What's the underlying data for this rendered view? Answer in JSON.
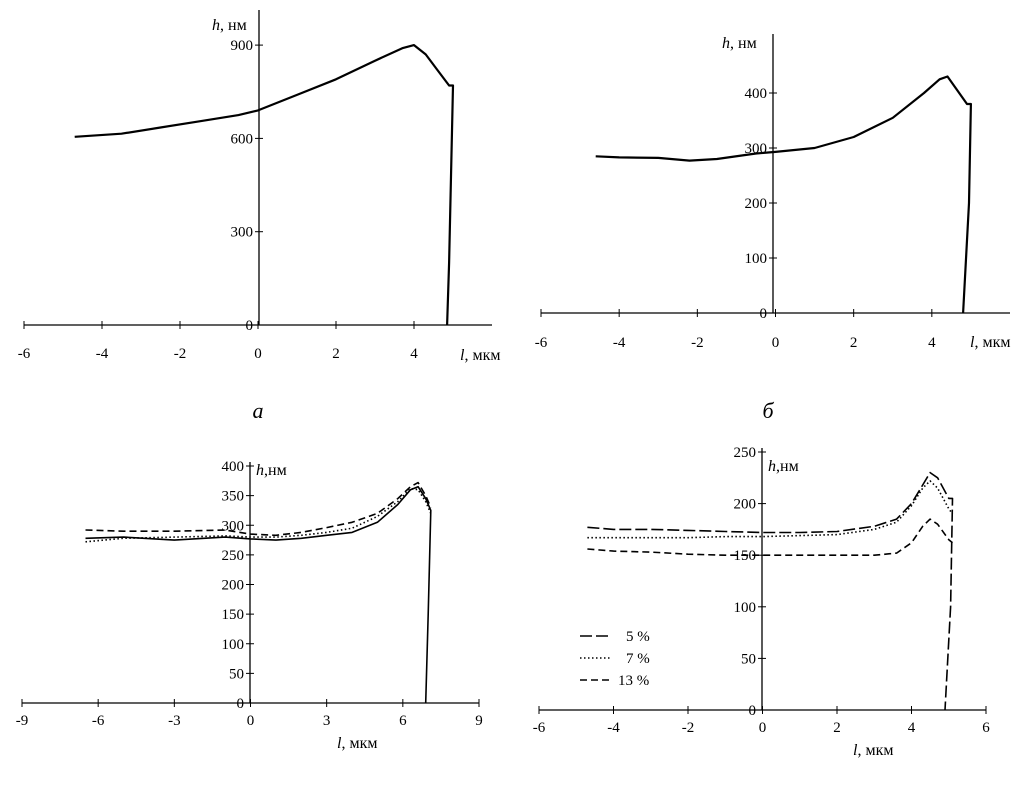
{
  "panels": [
    "а",
    "б"
  ],
  "chart_data": [
    {
      "type": "line",
      "panel_label": "а",
      "xlabel_var": "l",
      "xlabel_unit": ", мкм",
      "ylabel_var": "h",
      "ylabel_unit": ", нм",
      "xlim": [
        -6,
        6
      ],
      "ylim": [
        0,
        1000
      ],
      "xticks": [
        -6,
        -4,
        -2,
        0,
        2,
        4
      ],
      "yticks": [
        0,
        300,
        600,
        900
      ],
      "series": [
        {
          "x": [
            -4.7,
            -3.5,
            -2.5,
            -1.5,
            -0.5,
            0,
            1,
            2,
            3,
            3.7,
            4.0,
            4.3,
            4.6,
            4.9,
            5.0,
            4.9,
            4.85
          ],
          "y": [
            605,
            615,
            635,
            655,
            675,
            690,
            740,
            790,
            850,
            890,
            900,
            870,
            820,
            770,
            770,
            200,
            0
          ]
        }
      ]
    },
    {
      "type": "line",
      "panel_label": "б",
      "xlabel_var": "l",
      "xlabel_unit": ", мкм",
      "ylabel_var": "h",
      "ylabel_unit": ", нм",
      "xlim": [
        -6,
        6
      ],
      "ylim": [
        0,
        500
      ],
      "xticks": [
        -6,
        -4,
        -2,
        0,
        2,
        4
      ],
      "yticks": [
        0,
        100,
        200,
        300,
        400
      ],
      "series": [
        {
          "x": [
            -4.6,
            -4.0,
            -3.0,
            -2.2,
            -1.5,
            -0.5,
            0,
            1,
            2,
            3,
            3.8,
            4.2,
            4.4,
            4.6,
            4.9,
            5.0,
            4.95,
            4.8
          ],
          "y": [
            285,
            283,
            282,
            277,
            280,
            290,
            293,
            300,
            320,
            355,
            400,
            425,
            430,
            410,
            380,
            380,
            200,
            0
          ]
        }
      ]
    },
    {
      "type": "line",
      "xlabel_var": "l",
      "xlabel_unit": ", мкм",
      "ylabel_var": "h",
      "ylabel_unit": ",нм",
      "xlim": [
        -9,
        9
      ],
      "ylim": [
        0,
        400
      ],
      "xticks": [
        -9,
        -6,
        -3,
        0,
        3,
        6,
        9
      ],
      "yticks": [
        0,
        50,
        100,
        150,
        200,
        250,
        300,
        350,
        400
      ],
      "series": [
        {
          "style": "solid",
          "x": [
            -6.5,
            -5,
            -3,
            -1,
            0,
            1,
            2,
            3,
            4,
            5,
            5.8,
            6.3,
            6.6,
            6.9,
            7.1,
            7.0,
            6.9
          ],
          "y": [
            278,
            280,
            275,
            280,
            277,
            275,
            278,
            283,
            288,
            305,
            335,
            360,
            365,
            345,
            325,
            150,
            0
          ]
        },
        {
          "style": "dashed",
          "x": [
            -6.5,
            -5,
            -3,
            -1,
            0,
            1,
            2,
            3,
            4,
            5,
            5.8,
            6.3,
            6.6,
            6.9,
            7.1
          ],
          "y": [
            292,
            290,
            290,
            292,
            285,
            283,
            288,
            296,
            305,
            320,
            345,
            365,
            372,
            350,
            330
          ]
        },
        {
          "style": "dotted",
          "x": [
            -6.5,
            -5,
            -3,
            -1,
            0,
            1,
            2,
            3,
            4,
            5,
            5.8,
            6.3,
            6.6,
            6.9,
            7.1
          ],
          "y": [
            272,
            278,
            280,
            282,
            280,
            280,
            283,
            288,
            295,
            315,
            340,
            362,
            360,
            340,
            320
          ]
        }
      ]
    },
    {
      "type": "line",
      "xlabel_var": "l",
      "xlabel_unit": ", мкм",
      "ylabel_var": "h",
      "ylabel_unit": ",нм",
      "xlim": [
        -6,
        6
      ],
      "ylim": [
        0,
        250
      ],
      "xticks": [
        -6,
        -4,
        -2,
        0,
        2,
        4,
        6
      ],
      "yticks": [
        0,
        50,
        100,
        150,
        200,
        250
      ],
      "legend": [
        "5 %",
        "7 %",
        "13 %"
      ],
      "series": [
        {
          "name": "5 %",
          "style": "longdash",
          "x": [
            -4.7,
            -4,
            -3,
            -2,
            -1,
            0,
            1,
            2,
            3,
            3.6,
            4.0,
            4.3,
            4.5,
            4.7,
            5.0,
            5.1,
            5.05,
            4.9
          ],
          "y": [
            177,
            175,
            175,
            174,
            173,
            172,
            172,
            173,
            178,
            185,
            200,
            218,
            230,
            225,
            205,
            205,
            100,
            0
          ]
        },
        {
          "name": "7 %",
          "style": "dotted",
          "x": [
            -4.7,
            -4,
            -3,
            -2,
            -1,
            0,
            1,
            2,
            3,
            3.6,
            4.0,
            4.3,
            4.5,
            4.7,
            5.0,
            5.1
          ],
          "y": [
            167,
            167,
            167,
            167,
            168,
            168,
            169,
            170,
            175,
            182,
            198,
            215,
            222,
            215,
            195,
            190
          ]
        },
        {
          "name": "13 %",
          "style": "dashed",
          "x": [
            -4.7,
            -4,
            -3,
            -2,
            -1,
            0,
            1,
            2,
            3,
            3.6,
            4.0,
            4.3,
            4.5,
            4.7,
            5.0,
            5.1
          ],
          "y": [
            156,
            154,
            153,
            151,
            150,
            150,
            150,
            150,
            150,
            152,
            162,
            178,
            185,
            180,
            165,
            162
          ]
        }
      ]
    }
  ]
}
